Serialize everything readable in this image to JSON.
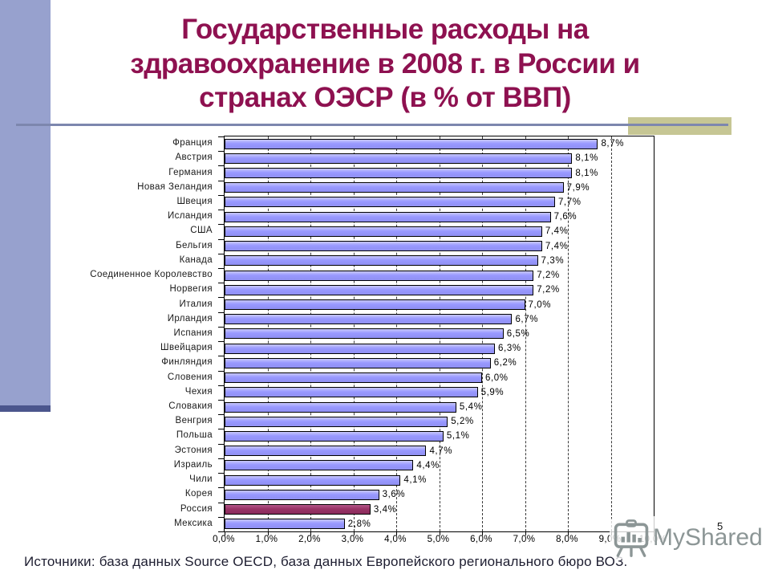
{
  "slide": {
    "title": "Государственные расходы на здравоохранение в 2008 г. в России и странах ОЭСР (в % от ВВП)",
    "page_number": "5",
    "watermark": "MyShared",
    "source_note": "Источники: база данных Source OECD, база данных Европейского регионального бюро ВОЗ."
  },
  "chart_data": {
    "type": "bar",
    "orientation": "horizontal",
    "title": "Государственные расходы на здравоохранение в 2008 г. (в % от ВВП)",
    "categories": [
      "Франция",
      "Австрия",
      "Германия",
      "Новая Зеландия",
      "Швеция",
      "Исландия",
      "США",
      "Бельгия",
      "Канада",
      "Соединенное Королевство",
      "Норвегия",
      "Италия",
      "Ирландия",
      "Испания",
      "Швейцария",
      "Финляндия",
      "Словения",
      "Чехия",
      "Словакия",
      "Венгрия",
      "Польша",
      "Эстония",
      "Израиль",
      "Чили",
      "Корея",
      "Россия",
      "Мексика"
    ],
    "values": [
      8.7,
      8.1,
      8.1,
      7.9,
      7.7,
      7.6,
      7.4,
      7.4,
      7.3,
      7.2,
      7.2,
      7.0,
      6.7,
      6.5,
      6.3,
      6.2,
      6.0,
      5.9,
      5.4,
      5.2,
      5.1,
      4.7,
      4.4,
      4.1,
      3.6,
      3.4,
      2.8
    ],
    "value_labels": [
      "8,7%",
      "8,1%",
      "8,1%",
      "7,9%",
      "7,7%",
      "7,6%",
      "7,4%",
      "7,4%",
      "7,3%",
      "7,2%",
      "7,2%",
      "7,0%",
      "6,7%",
      "6,5%",
      "6,3%",
      "6,2%",
      "6,0%",
      "5,9%",
      "5,4%",
      "5,2%",
      "5,1%",
      "4,7%",
      "4,4%",
      "4,1%",
      "3,6%",
      "3,4%",
      "2,8%"
    ],
    "highlight_category": "Россия",
    "xlabel": "",
    "ylabel": "",
    "xlim": [
      0,
      10
    ],
    "x_ticks": [
      "0,0%",
      "1,0%",
      "2,0%",
      "3,0%",
      "4,0%",
      "5,0%",
      "6,0%",
      "7,0%",
      "8,0%",
      "9,0%",
      "10,0%"
    ],
    "grid": "vertical-dashed",
    "legend": "none"
  },
  "colors": {
    "title": "#8E1150",
    "sidebar": "#97A1CE",
    "sidebar_accent": "#4B568D",
    "khaki": "#C6C694",
    "divider": "#7D87AE",
    "bar": "#9999FF",
    "bar_light": "#C7C7FB",
    "bar_dark": "#8F8FF2",
    "highlight": "#993366",
    "highlight_light": "#B4578A",
    "highlight_dark": "#8A2C5C",
    "watermark_gray": "#8C9696"
  }
}
